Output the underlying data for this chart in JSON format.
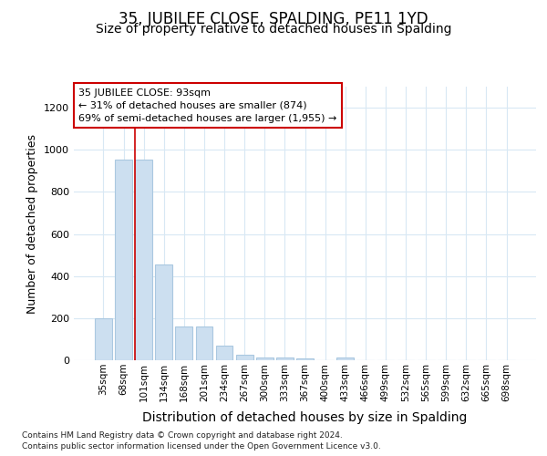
{
  "title": "35, JUBILEE CLOSE, SPALDING, PE11 1YD",
  "subtitle": "Size of property relative to detached houses in Spalding",
  "xlabel": "Distribution of detached houses by size in Spalding",
  "ylabel": "Number of detached properties",
  "footnote1": "Contains HM Land Registry data © Crown copyright and database right 2024.",
  "footnote2": "Contains public sector information licensed under the Open Government Licence v3.0.",
  "categories": [
    "35sqm",
    "68sqm",
    "101sqm",
    "134sqm",
    "168sqm",
    "201sqm",
    "234sqm",
    "267sqm",
    "300sqm",
    "333sqm",
    "367sqm",
    "400sqm",
    "433sqm",
    "466sqm",
    "499sqm",
    "532sqm",
    "565sqm",
    "599sqm",
    "632sqm",
    "665sqm",
    "698sqm"
  ],
  "values": [
    200,
    955,
    955,
    455,
    160,
    160,
    70,
    25,
    15,
    12,
    10,
    0,
    15,
    0,
    0,
    0,
    0,
    0,
    0,
    0,
    0
  ],
  "bar_color": "#ccdff0",
  "bar_edge_color": "#aac8e0",
  "grid_color": "#d8e8f4",
  "vline_color": "#cc0000",
  "vline_x_index": 2,
  "annotation_text": "35 JUBILEE CLOSE: 93sqm\n← 31% of detached houses are smaller (874)\n69% of semi-detached houses are larger (1,955) →",
  "annotation_box_color": "#ffffff",
  "annotation_box_edge": "#cc0000",
  "ylim": [
    0,
    1300
  ],
  "yticks": [
    0,
    200,
    400,
    600,
    800,
    1000,
    1200
  ],
  "background_color": "#ffffff",
  "title_fontsize": 12,
  "subtitle_fontsize": 10,
  "ylabel_fontsize": 9,
  "xlabel_fontsize": 10
}
